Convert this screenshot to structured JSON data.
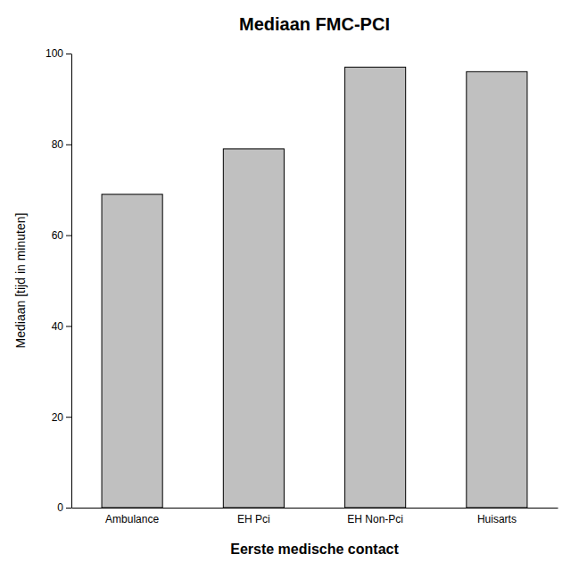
{
  "chart_data": {
    "type": "bar",
    "title": "Mediaan FMC-PCI",
    "categories": [
      "Ambulance",
      "EH Pci",
      "EH Non-Pci",
      "Huisarts"
    ],
    "values": [
      69,
      79,
      97,
      96
    ],
    "color": "#c0c0c0",
    "xlabel": "Eerste medische contact",
    "ylabel": "Mediaan [tijd in minuten]",
    "ylim": [
      0,
      100
    ],
    "yticks": [
      0,
      20,
      40,
      60,
      80,
      100
    ],
    "grid": false
  }
}
